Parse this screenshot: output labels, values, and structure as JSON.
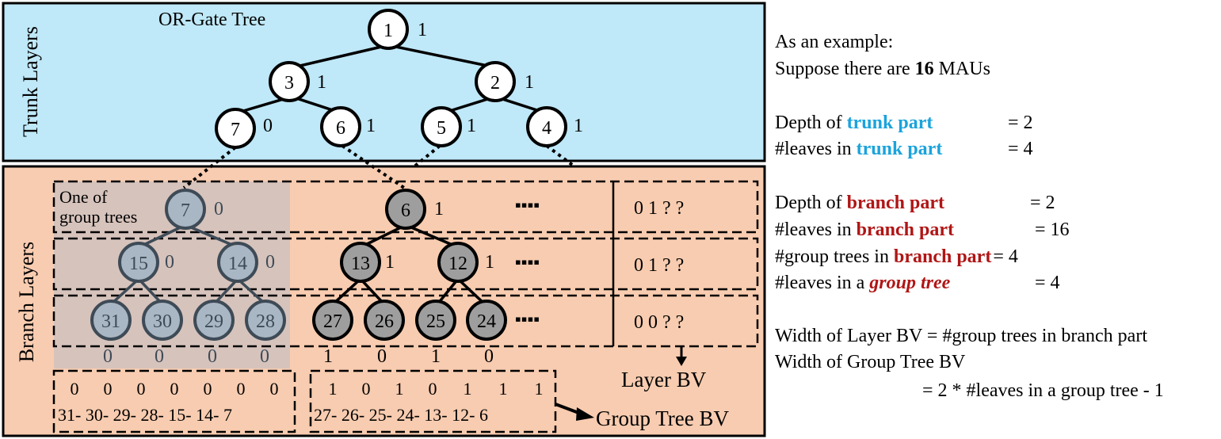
{
  "colors": {
    "trunk_bg": "#bfe8f8",
    "branch_bg": "#f8ccb0",
    "group_highlight": "#d6c3bc",
    "trunk_keyword": "#1aa3dc",
    "branch_keyword": "#b01515",
    "grey_node": "#9e9e9e",
    "slate_node": "#a9b6c4",
    "slate_stroke": "#3e4b57"
  },
  "diagram": {
    "trunk_title": "OR-Gate Tree",
    "trunk_side_label": "Trunk Layers",
    "branch_side_label": "Branch Layers",
    "group_tree_label_line1": "One of",
    "group_tree_label_line2": "group trees",
    "ellipsis_symbol": "▪▪▪▪",
    "layer_bv_label": "Layer BV",
    "group_tree_bv_label": "Group Tree BV",
    "trunk_nodes": [
      {
        "id": "1",
        "value": "1"
      },
      {
        "id": "3",
        "value": "1"
      },
      {
        "id": "2",
        "value": "1"
      },
      {
        "id": "7",
        "value": "0"
      },
      {
        "id": "6",
        "value": "1"
      },
      {
        "id": "5",
        "value": "1"
      },
      {
        "id": "4",
        "value": "1"
      }
    ],
    "group_tree_nodes": [
      {
        "id": "7",
        "value": "0"
      },
      {
        "id": "15",
        "value": "0"
      },
      {
        "id": "14",
        "value": "0"
      },
      {
        "id": "31",
        "value": "0"
      },
      {
        "id": "30",
        "value": "0"
      },
      {
        "id": "29",
        "value": "0"
      },
      {
        "id": "28",
        "value": "0"
      }
    ],
    "second_tree_nodes": [
      {
        "id": "6",
        "value": "1"
      },
      {
        "id": "13",
        "value": "1"
      },
      {
        "id": "12",
        "value": "1"
      },
      {
        "id": "27",
        "value": "1"
      },
      {
        "id": "26",
        "value": "0"
      },
      {
        "id": "25",
        "value": "1"
      },
      {
        "id": "24",
        "value": "0"
      }
    ],
    "layer_bv_rows": [
      "0 1 ? ?",
      "0 1 ? ?",
      "0 0 ? ?"
    ],
    "bv_box_left": {
      "bits": [
        "0",
        "0",
        "0",
        "0",
        "0",
        "0",
        "0"
      ],
      "ids": "31- 30- 29- 28- 15- 14-  7"
    },
    "bv_box_right": {
      "bits": [
        "1",
        "0",
        "1",
        "0",
        "1",
        "1",
        "1"
      ],
      "ids": "27- 26- 25- 24- 13- 12-  6"
    }
  },
  "notes": {
    "intro": "As an example:",
    "suppose_prefix": "Suppose there are ",
    "suppose_number": "16",
    "suppose_suffix": " MAUs",
    "depth_of": "Depth of ",
    "leaves_in": "#leaves in ",
    "group_trees_in": "#group trees in ",
    "leaves_in_a": "#leaves in a ",
    "trunk_part": "trunk part",
    "branch_part": "branch part",
    "group_tree": "group tree",
    "depth_trunk_value": "= 2",
    "leaves_trunk_value": "= 4",
    "depth_branch_value": "= 2",
    "leaves_branch_value": "= 16",
    "group_trees_value": "= 4",
    "leaves_group_value": "= 4",
    "width_layer_bv": "Width of Layer BV = #group trees in branch part",
    "width_group_tree_bv": "Width of Group Tree BV",
    "width_group_tree_formula": "= 2 * #leaves in a group tree  -  1"
  }
}
